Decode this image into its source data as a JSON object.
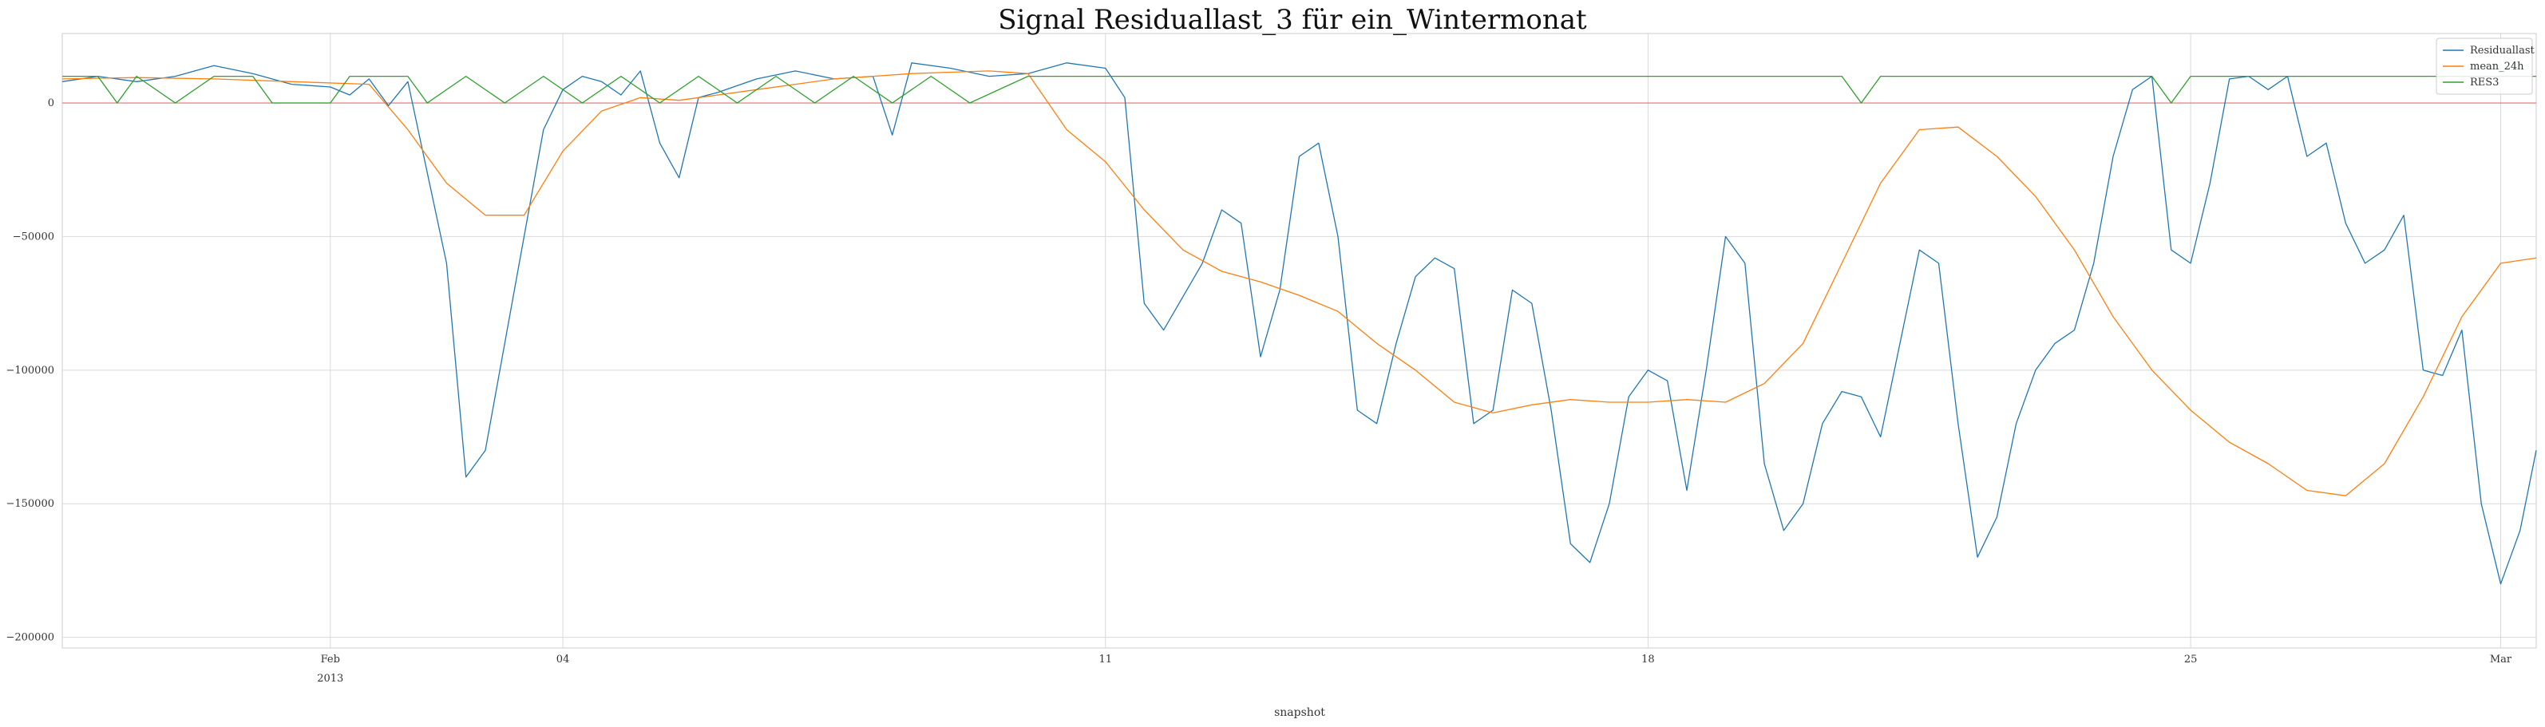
{
  "chart_data": {
    "type": "line",
    "title": "Signal Residuallast_3 für ein_Wintermonat",
    "xlabel": "snapshot",
    "ylabel": "",
    "x_range": [
      "2013-01-28T13:00",
      "2013-03-01T11:00"
    ],
    "ylim": [
      -204000,
      26000
    ],
    "y_ticks": [
      0,
      -50000,
      -100000,
      -150000,
      -200000
    ],
    "y_tick_labels": [
      "0",
      "−50000",
      "−100000",
      "−150000",
      "−200000"
    ],
    "x_ticks": [
      {
        "date": "2013-02-01",
        "major": "Feb",
        "minor": "2013"
      },
      {
        "date": "2013-02-04",
        "major": "04",
        "minor": ""
      },
      {
        "date": "2013-02-11",
        "major": "11",
        "minor": ""
      },
      {
        "date": "2013-02-18",
        "major": "18",
        "minor": ""
      },
      {
        "date": "2013-02-25",
        "major": "25",
        "minor": ""
      },
      {
        "date": "2013-03-01",
        "major": "Mar",
        "minor": ""
      }
    ],
    "grid": true,
    "legend_position": "top-right",
    "zero_line_color": "#e07070",
    "series": [
      {
        "name": "Residuallast",
        "color": "#1f77b4",
        "points": [
          [
            "2013-01-28T13:00",
            8000
          ],
          [
            "2013-01-29T00:00",
            10000
          ],
          [
            "2013-01-29T12:00",
            8000
          ],
          [
            "2013-01-30T00:00",
            10000
          ],
          [
            "2013-01-30T12:00",
            14000
          ],
          [
            "2013-01-31T00:00",
            11000
          ],
          [
            "2013-01-31T12:00",
            7000
          ],
          [
            "2013-02-01T00:00",
            6000
          ],
          [
            "2013-02-01T06:00",
            3000
          ],
          [
            "2013-02-01T12:00",
            9000
          ],
          [
            "2013-02-01T18:00",
            -1000
          ],
          [
            "2013-02-02T00:00",
            8000
          ],
          [
            "2013-02-02T12:00",
            -60000
          ],
          [
            "2013-02-02T18:00",
            -140000
          ],
          [
            "2013-02-03T00:00",
            -130000
          ],
          [
            "2013-02-03T12:00",
            -50000
          ],
          [
            "2013-02-03T18:00",
            -10000
          ],
          [
            "2013-02-04T00:00",
            5000
          ],
          [
            "2013-02-04T06:00",
            10000
          ],
          [
            "2013-02-04T12:00",
            8000
          ],
          [
            "2013-02-04T18:00",
            3000
          ],
          [
            "2013-02-05T00:00",
            12000
          ],
          [
            "2013-02-05T06:00",
            -15000
          ],
          [
            "2013-02-05T12:00",
            -28000
          ],
          [
            "2013-02-05T18:00",
            2000
          ],
          [
            "2013-02-06T00:00",
            4000
          ],
          [
            "2013-02-06T12:00",
            9000
          ],
          [
            "2013-02-07T00:00",
            12000
          ],
          [
            "2013-02-07T12:00",
            9000
          ],
          [
            "2013-02-08T00:00",
            10000
          ],
          [
            "2013-02-08T06:00",
            -12000
          ],
          [
            "2013-02-08T12:00",
            15000
          ],
          [
            "2013-02-09T00:00",
            13000
          ],
          [
            "2013-02-09T12:00",
            10000
          ],
          [
            "2013-02-10T00:00",
            11000
          ],
          [
            "2013-02-10T12:00",
            15000
          ],
          [
            "2013-02-11T00:00",
            13000
          ],
          [
            "2013-02-11T06:00",
            2000
          ],
          [
            "2013-02-11T12:00",
            -75000
          ],
          [
            "2013-02-11T18:00",
            -85000
          ],
          [
            "2013-02-12T06:00",
            -60000
          ],
          [
            "2013-02-12T12:00",
            -40000
          ],
          [
            "2013-02-12T18:00",
            -45000
          ],
          [
            "2013-02-13T00:00",
            -95000
          ],
          [
            "2013-02-13T06:00",
            -70000
          ],
          [
            "2013-02-13T12:00",
            -20000
          ],
          [
            "2013-02-13T18:00",
            -15000
          ],
          [
            "2013-02-14T00:00",
            -50000
          ],
          [
            "2013-02-14T06:00",
            -115000
          ],
          [
            "2013-02-14T12:00",
            -120000
          ],
          [
            "2013-02-14T18:00",
            -90000
          ],
          [
            "2013-02-15T00:00",
            -65000
          ],
          [
            "2013-02-15T06:00",
            -58000
          ],
          [
            "2013-02-15T12:00",
            -62000
          ],
          [
            "2013-02-15T18:00",
            -120000
          ],
          [
            "2013-02-16T00:00",
            -115000
          ],
          [
            "2013-02-16T06:00",
            -70000
          ],
          [
            "2013-02-16T12:00",
            -75000
          ],
          [
            "2013-02-16T18:00",
            -115000
          ],
          [
            "2013-02-17T00:00",
            -165000
          ],
          [
            "2013-02-17T06:00",
            -172000
          ],
          [
            "2013-02-17T12:00",
            -150000
          ],
          [
            "2013-02-17T18:00",
            -110000
          ],
          [
            "2013-02-18T00:00",
            -100000
          ],
          [
            "2013-02-18T06:00",
            -104000
          ],
          [
            "2013-02-18T12:00",
            -145000
          ],
          [
            "2013-02-18T18:00",
            -100000
          ],
          [
            "2013-02-19T00:00",
            -50000
          ],
          [
            "2013-02-19T06:00",
            -60000
          ],
          [
            "2013-02-19T12:00",
            -135000
          ],
          [
            "2013-02-19T18:00",
            -160000
          ],
          [
            "2013-02-20T00:00",
            -150000
          ],
          [
            "2013-02-20T06:00",
            -120000
          ],
          [
            "2013-02-20T12:00",
            -108000
          ],
          [
            "2013-02-20T18:00",
            -110000
          ],
          [
            "2013-02-21T00:00",
            -125000
          ],
          [
            "2013-02-21T06:00",
            -90000
          ],
          [
            "2013-02-21T12:00",
            -55000
          ],
          [
            "2013-02-21T18:00",
            -60000
          ],
          [
            "2013-02-22T00:00",
            -120000
          ],
          [
            "2013-02-22T06:00",
            -170000
          ],
          [
            "2013-02-22T12:00",
            -155000
          ],
          [
            "2013-02-22T18:00",
            -120000
          ],
          [
            "2013-02-23T00:00",
            -100000
          ],
          [
            "2013-02-23T06:00",
            -90000
          ],
          [
            "2013-02-23T12:00",
            -85000
          ],
          [
            "2013-02-23T18:00",
            -60000
          ],
          [
            "2013-02-24T00:00",
            -20000
          ],
          [
            "2013-02-24T06:00",
            5000
          ],
          [
            "2013-02-24T12:00",
            10000
          ],
          [
            "2013-02-24T18:00",
            -55000
          ],
          [
            "2013-02-25T00:00",
            -60000
          ],
          [
            "2013-02-25T06:00",
            -30000
          ],
          [
            "2013-02-25T12:00",
            9000
          ],
          [
            "2013-02-25T18:00",
            10000
          ],
          [
            "2013-02-26T00:00",
            5000
          ],
          [
            "2013-02-26T06:00",
            10000
          ],
          [
            "2013-02-26T12:00",
            -20000
          ],
          [
            "2013-02-26T18:00",
            -15000
          ],
          [
            "2013-02-27T00:00",
            -45000
          ],
          [
            "2013-02-27T06:00",
            -60000
          ],
          [
            "2013-02-27T12:00",
            -55000
          ],
          [
            "2013-02-27T18:00",
            -42000
          ],
          [
            "2013-02-28T00:00",
            -100000
          ],
          [
            "2013-02-28T06:00",
            -102000
          ],
          [
            "2013-02-28T12:00",
            -85000
          ],
          [
            "2013-02-28T18:00",
            -150000
          ],
          [
            "2013-03-01T00:00",
            -180000
          ],
          [
            "2013-03-01T06:00",
            -160000
          ],
          [
            "2013-03-01T11:00",
            -130000
          ]
        ]
      },
      {
        "name": "mean_24h",
        "color": "#ff7f0e",
        "points": [
          [
            "2013-01-28T13:00",
            9000
          ],
          [
            "2013-01-29T12:00",
            9500
          ],
          [
            "2013-01-30T12:00",
            9000
          ],
          [
            "2013-01-31T12:00",
            8000
          ],
          [
            "2013-02-01T12:00",
            7000
          ],
          [
            "2013-02-02T00:00",
            -10000
          ],
          [
            "2013-02-02T12:00",
            -30000
          ],
          [
            "2013-02-03T00:00",
            -42000
          ],
          [
            "2013-02-03T12:00",
            -42000
          ],
          [
            "2013-02-04T00:00",
            -18000
          ],
          [
            "2013-02-04T12:00",
            -3000
          ],
          [
            "2013-02-05T00:00",
            2000
          ],
          [
            "2013-02-05T12:00",
            1000
          ],
          [
            "2013-02-06T00:00",
            3000
          ],
          [
            "2013-02-06T12:00",
            5000
          ],
          [
            "2013-02-07T00:00",
            7000
          ],
          [
            "2013-02-07T12:00",
            9000
          ],
          [
            "2013-02-08T00:00",
            10000
          ],
          [
            "2013-02-08T12:00",
            11000
          ],
          [
            "2013-02-09T00:00",
            11500
          ],
          [
            "2013-02-09T12:00",
            12000
          ],
          [
            "2013-02-10T00:00",
            11000
          ],
          [
            "2013-02-10T12:00",
            -10000
          ],
          [
            "2013-02-11T00:00",
            -22000
          ],
          [
            "2013-02-11T12:00",
            -40000
          ],
          [
            "2013-02-12T00:00",
            -55000
          ],
          [
            "2013-02-12T12:00",
            -63000
          ],
          [
            "2013-02-13T00:00",
            -67000
          ],
          [
            "2013-02-13T12:00",
            -72000
          ],
          [
            "2013-02-14T00:00",
            -78000
          ],
          [
            "2013-02-14T12:00",
            -90000
          ],
          [
            "2013-02-15T00:00",
            -100000
          ],
          [
            "2013-02-15T12:00",
            -112000
          ],
          [
            "2013-02-16T00:00",
            -116000
          ],
          [
            "2013-02-16T12:00",
            -113000
          ],
          [
            "2013-02-17T00:00",
            -111000
          ],
          [
            "2013-02-17T12:00",
            -112000
          ],
          [
            "2013-02-18T00:00",
            -112000
          ],
          [
            "2013-02-18T12:00",
            -111000
          ],
          [
            "2013-02-19T00:00",
            -112000
          ],
          [
            "2013-02-19T12:00",
            -105000
          ],
          [
            "2013-02-20T00:00",
            -90000
          ],
          [
            "2013-02-20T12:00",
            -60000
          ],
          [
            "2013-02-21T00:00",
            -30000
          ],
          [
            "2013-02-21T12:00",
            -10000
          ],
          [
            "2013-02-22T00:00",
            -9000
          ],
          [
            "2013-02-22T12:00",
            -20000
          ],
          [
            "2013-02-23T00:00",
            -35000
          ],
          [
            "2013-02-23T12:00",
            -55000
          ],
          [
            "2013-02-24T00:00",
            -80000
          ],
          [
            "2013-02-24T12:00",
            -100000
          ],
          [
            "2013-02-25T00:00",
            -115000
          ],
          [
            "2013-02-25T12:00",
            -127000
          ],
          [
            "2013-02-26T00:00",
            -135000
          ],
          [
            "2013-02-26T12:00",
            -145000
          ],
          [
            "2013-02-27T00:00",
            -147000
          ],
          [
            "2013-02-27T12:00",
            -135000
          ],
          [
            "2013-02-28T00:00",
            -110000
          ],
          [
            "2013-02-28T12:00",
            -80000
          ],
          [
            "2013-03-01T00:00",
            -60000
          ],
          [
            "2013-03-01T11:00",
            -58000
          ]
        ]
      },
      {
        "name": "RES3",
        "color": "#2ca02c",
        "points": [
          [
            "2013-01-28T13:00",
            10000
          ],
          [
            "2013-01-29T00:00",
            10000
          ],
          [
            "2013-01-29T06:00",
            0
          ],
          [
            "2013-01-29T12:00",
            10000
          ],
          [
            "2013-01-30T00:00",
            0
          ],
          [
            "2013-01-30T12:00",
            10000
          ],
          [
            "2013-01-31T00:00",
            10000
          ],
          [
            "2013-01-31T06:00",
            0
          ],
          [
            "2013-02-01T00:00",
            0
          ],
          [
            "2013-02-01T06:00",
            10000
          ],
          [
            "2013-02-02T00:00",
            10000
          ],
          [
            "2013-02-02T06:00",
            0
          ],
          [
            "2013-02-02T18:00",
            10000
          ],
          [
            "2013-02-03T06:00",
            0
          ],
          [
            "2013-02-03T18:00",
            10000
          ],
          [
            "2013-02-04T06:00",
            0
          ],
          [
            "2013-02-04T18:00",
            10000
          ],
          [
            "2013-02-05T06:00",
            0
          ],
          [
            "2013-02-05T18:00",
            10000
          ],
          [
            "2013-02-06T06:00",
            0
          ],
          [
            "2013-02-06T18:00",
            10000
          ],
          [
            "2013-02-07T06:00",
            0
          ],
          [
            "2013-02-07T18:00",
            10000
          ],
          [
            "2013-02-08T06:00",
            0
          ],
          [
            "2013-02-08T18:00",
            10000
          ],
          [
            "2013-02-09T06:00",
            0
          ],
          [
            "2013-02-10T00:00",
            10000
          ],
          [
            "2013-02-20T12:00",
            10000
          ],
          [
            "2013-02-20T18:00",
            0
          ],
          [
            "2013-02-21T00:00",
            10000
          ],
          [
            "2013-02-24T12:00",
            10000
          ],
          [
            "2013-02-24T18:00",
            0
          ],
          [
            "2013-02-25T00:00",
            10000
          ],
          [
            "2013-03-01T11:00",
            10000
          ]
        ]
      }
    ]
  }
}
